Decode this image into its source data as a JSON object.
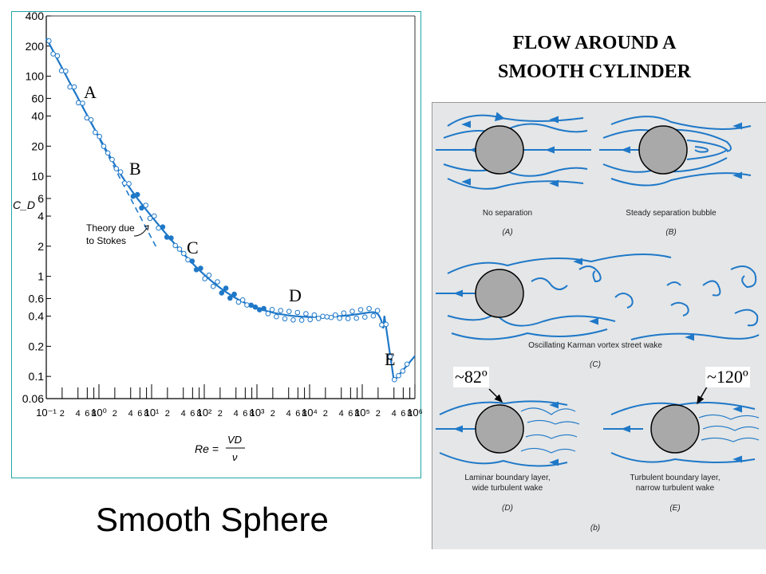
{
  "sphere_chart": {
    "ylabel": "C_D",
    "xlabel_lhs": "Re =",
    "xlabel_num": "VD",
    "xlabel_den": "ν",
    "yticks": [
      "400",
      "200",
      "100",
      "60",
      "40",
      "20",
      "10",
      "6",
      "4",
      "2",
      "1",
      "0.6",
      "0.4",
      "0.2",
      "0.1",
      "0.06"
    ],
    "xticks_major": [
      "10⁻¹",
      "10⁰",
      "10¹",
      "10²",
      "10³",
      "10⁴",
      "10⁵",
      "10⁶"
    ],
    "xticks_minor": [
      "2",
      "4",
      "6",
      "8"
    ],
    "stokes_label_line1": "Theory due",
    "stokes_label_line2": "to Stokes",
    "region_labels": [
      "A",
      "B",
      "C",
      "D",
      "E"
    ],
    "title": "Smooth Sphere"
  },
  "cylinder": {
    "title_line1": "FLOW AROUND A",
    "title_line2": "SMOOTH CYLINDER",
    "panels": [
      {
        "caption": "No separation",
        "tag": "(A)"
      },
      {
        "caption": "Steady separation bubble",
        "tag": "(B)"
      },
      {
        "caption": "Oscillating Karman vortex street wake",
        "tag": "(C)"
      },
      {
        "caption_line1": "Laminar boundary layer,",
        "caption_line2": "wide turbulent wake",
        "tag": "(D)"
      },
      {
        "caption_line1": "Turbulent boundary layer,",
        "caption_line2": "narrow turbulent wake",
        "tag": "(E)"
      }
    ],
    "angle_laminar": "~82º",
    "angle_turbulent": "~120º",
    "figure_tag": "(b)"
  },
  "colors": {
    "curve": "#1f78c8",
    "frame": "#22a6a6",
    "cylinder_fill": "#a9a9a9",
    "panel_bg": "#e4e6e7"
  }
}
